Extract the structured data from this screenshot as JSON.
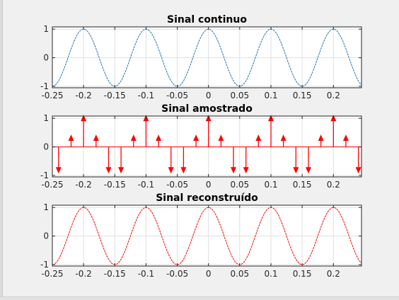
{
  "figure": {
    "background": "#f0f0f0",
    "axes_background": "#ffffff",
    "grid_color": "#dfdfdf",
    "axis_color": "#262626"
  },
  "chart_data": [
    {
      "type": "line",
      "title": "Sinal continuo",
      "xlabel": "",
      "ylabel": "",
      "xlim": [
        -0.25,
        0.245
      ],
      "ylim": [
        -1.05,
        1.08
      ],
      "grid": true,
      "color": "#1f77b4",
      "xticks": [
        -0.25,
        -0.2,
        -0.15,
        -0.1,
        -0.05,
        0,
        0.05,
        0.1,
        0.15,
        0.2
      ],
      "xtick_labels": [
        "-0.25",
        "-0.2",
        "-0.15",
        "-0.1",
        "-0.05",
        "0",
        "0.05",
        "0.1",
        "0.15",
        "0.2"
      ],
      "yticks": [
        1,
        0,
        -1
      ],
      "ytick_labels": [
        "1",
        "0",
        "-1"
      ],
      "function": "cos(2*pi*10*t)",
      "x_start": -0.25,
      "x_end": 0.245,
      "x_step": 0.001
    },
    {
      "type": "stem",
      "title": "Sinal amostrado",
      "xlabel": "",
      "ylabel": "",
      "xlim": [
        -0.25,
        0.245
      ],
      "ylim": [
        -1.05,
        1.08
      ],
      "grid": true,
      "color": "#ff0000",
      "xticks": [
        -0.25,
        -0.2,
        -0.15,
        -0.1,
        -0.05,
        0,
        0.05,
        0.1,
        0.15,
        0.2
      ],
      "xtick_labels": [
        "-0.25",
        "-0.2",
        "-0.15",
        "-0.1",
        "-0.05",
        "0",
        "0.05",
        "0.1",
        "0.15",
        "0.2"
      ],
      "yticks": [
        1,
        0,
        -1
      ],
      "ytick_labels": [
        "1",
        "0",
        "-1"
      ],
      "x": [
        -0.24,
        -0.22,
        -0.2,
        -0.18,
        -0.16,
        -0.14,
        -0.12,
        -0.1,
        -0.08,
        -0.06,
        -0.04,
        -0.02,
        0,
        0.02,
        0.04,
        0.06,
        0.08,
        0.1,
        0.12,
        0.14,
        0.16,
        0.18,
        0.2,
        0.22,
        0.24
      ],
      "y": [
        -0.81,
        0.31,
        1,
        0.31,
        -0.81,
        -0.81,
        0.31,
        1,
        0.31,
        -0.81,
        -0.81,
        0.31,
        1,
        0.31,
        -0.81,
        -0.81,
        0.31,
        1,
        0.31,
        -0.81,
        -0.81,
        0.31,
        1,
        0.31,
        -0.81
      ]
    },
    {
      "type": "line",
      "title": "Sinal reconstruído",
      "xlabel": "",
      "ylabel": "",
      "xlim": [
        -0.25,
        0.245
      ],
      "ylim": [
        -1.05,
        1.08
      ],
      "grid": true,
      "color": "#ff0000",
      "xticks": [
        -0.25,
        -0.2,
        -0.15,
        -0.1,
        -0.05,
        0,
        0.05,
        0.1,
        0.15,
        0.2
      ],
      "xtick_labels": [
        "-0.25",
        "-0.2",
        "-0.15",
        "-0.1",
        "-0.05",
        "0",
        "0.05",
        "0.1",
        "0.15",
        "0.2"
      ],
      "yticks": [
        1,
        0,
        -1
      ],
      "ytick_labels": [
        "1",
        "0",
        "-1"
      ],
      "function": "cos(2*pi*10*t)",
      "x_start": -0.25,
      "x_end": 0.245,
      "x_step": 0.001
    }
  ]
}
